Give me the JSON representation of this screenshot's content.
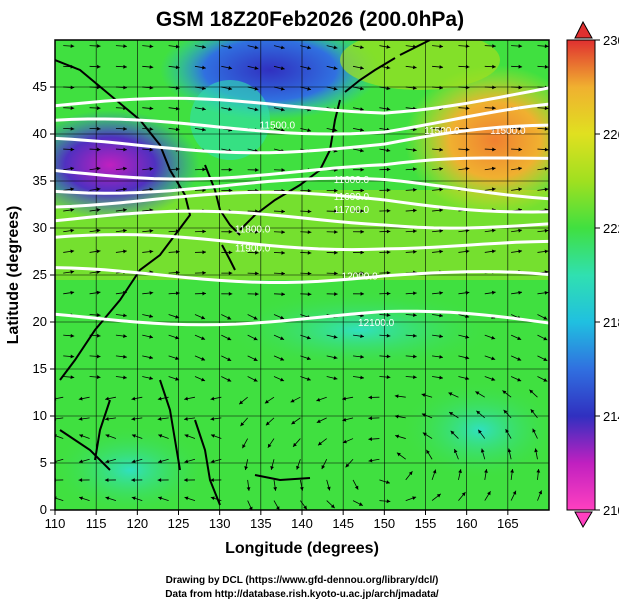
{
  "title": "GSM 18Z20Feb2026 (200.0hPa)",
  "x_axis": {
    "label": "Longitude (degrees)",
    "range": [
      110,
      170
    ],
    "ticks": [
      "110",
      "115",
      "120",
      "125",
      "130",
      "135",
      "140",
      "145",
      "150",
      "155",
      "160",
      "165"
    ]
  },
  "y_axis": {
    "label": "Latitude  (degrees)",
    "range": [
      0,
      50
    ],
    "ticks": [
      "0",
      "5",
      "10",
      "15",
      "20",
      "25",
      "30",
      "35",
      "40",
      "45"
    ]
  },
  "colorbar": {
    "range": [
      210,
      230
    ],
    "ticks": [
      "210",
      "214",
      "218",
      "222",
      "226",
      "230"
    ],
    "colors": [
      "#ff40c0",
      "#c020c0",
      "#3030c0",
      "#3070e0",
      "#20c0e0",
      "#30e0b0",
      "#40e040",
      "#a0e020",
      "#e0e020",
      "#f0b030",
      "#f06040",
      "#e03030"
    ]
  },
  "contours": {
    "labels": [
      "11500.0",
      "11500.0",
      "11500.0",
      "11600.0",
      "11600.0",
      "11700.0",
      "11800.0",
      "11900.0",
      "12000.0",
      "12100.0"
    ],
    "lines": [
      {
        "lat": 43.0
      },
      {
        "lat": 40.8
      },
      {
        "lat": 38.8
      },
      {
        "lat": 36.0
      },
      {
        "lat": 34.5
      },
      {
        "lat": 33.0
      },
      {
        "lat": 31.0
      },
      {
        "lat": 28.5
      },
      {
        "lat": 25.0
      },
      {
        "lat": 20.5
      }
    ]
  },
  "credits": {
    "line1": "Drawing by DCL (https://www.gfd-dennou.org/library/dcl/)",
    "line2": "Data from http://database.rish.kyoto-u.ac.jp/arch/jmadata/"
  }
}
